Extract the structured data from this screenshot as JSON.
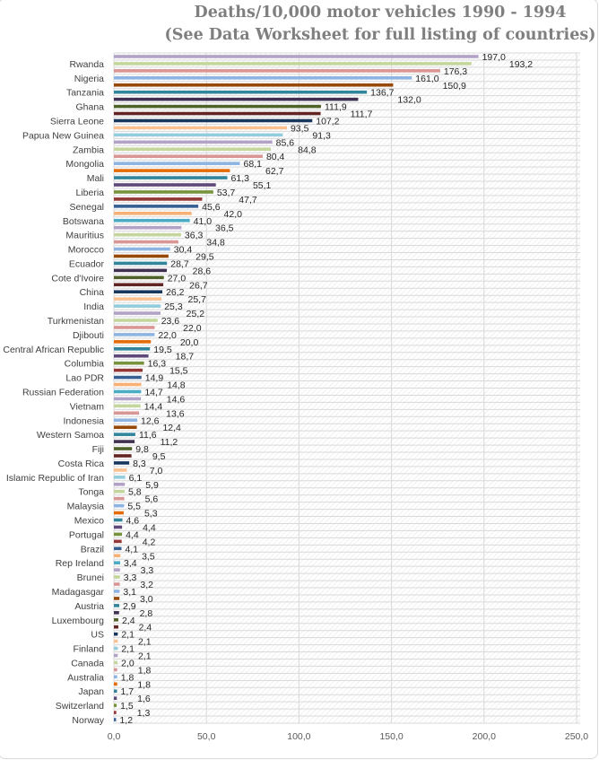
{
  "chart_data": {
    "type": "bar",
    "orientation": "horizontal",
    "title": [
      "Deaths/10,000 motor vehicles 1990 - 1994",
      "(See Data Worksheet for full listing of countries)"
    ],
    "xlabel": "",
    "ylabel": "",
    "xlim": [
      0,
      250
    ],
    "xticks": [
      "0,0",
      "50,0",
      "100,0",
      "150,0",
      "200,0",
      "250,0"
    ],
    "grid": true,
    "legend": "none",
    "categories": [
      "",
      "Rwanda",
      "",
      "Nigeria",
      "",
      "Tanzania",
      "",
      "Ghana",
      "",
      "Sierra Leone",
      "",
      "Papua New Guinea",
      "",
      "Zambia",
      "",
      "Mongolia",
      "",
      "Mali",
      "",
      "Liberia",
      "",
      "Senegal",
      "",
      "Botswana",
      "",
      "Mauritius",
      "",
      "Morocco",
      "",
      "Ecuador",
      "",
      "Cote d'Ivoire",
      "",
      "China",
      "",
      "India",
      "",
      "Turkmenistan",
      "",
      "Djibouti",
      "",
      "Central African Republic",
      "",
      "Columbia",
      "",
      "Lao PDR",
      "",
      "Russian Federation",
      "",
      "Vietnam",
      "",
      "Indonesia",
      "",
      "Western Samoa",
      "",
      "Fiji",
      "",
      "Costa Rica",
      "",
      "Islamic Republic of Iran",
      "",
      "Tonga",
      "",
      "Malaysia",
      "",
      "Mexico",
      "",
      "Portugal",
      "",
      "Brazil",
      "",
      "Rep Ireland",
      "",
      "Brunei",
      "",
      "Madagasgar",
      "",
      "Austria",
      "",
      "Luxembourg",
      "",
      "US",
      "",
      "Finland",
      "",
      "Canada",
      "",
      "Australia",
      "",
      "Japan",
      "",
      "Switzerland",
      "",
      "Norway"
    ],
    "values": [
      197.0,
      193.2,
      176.3,
      161.0,
      150.9,
      136.7,
      132.0,
      111.9,
      111.7,
      107.2,
      93.5,
      91.3,
      85.6,
      84.8,
      80.4,
      68.1,
      62.7,
      61.3,
      55.1,
      53.7,
      47.7,
      45.6,
      42.0,
      41.0,
      36.5,
      36.3,
      34.8,
      30.4,
      29.5,
      28.7,
      28.6,
      27.0,
      26.7,
      26.2,
      25.7,
      25.3,
      25.2,
      23.6,
      22.0,
      22.0,
      20.0,
      19.5,
      18.7,
      16.3,
      15.5,
      14.9,
      14.8,
      14.7,
      14.6,
      14.4,
      13.6,
      12.6,
      12.4,
      11.6,
      11.2,
      9.8,
      9.5,
      8.3,
      7.0,
      6.1,
      5.9,
      5.8,
      5.6,
      5.5,
      5.3,
      4.6,
      4.4,
      4.4,
      4.2,
      4.1,
      3.5,
      3.4,
      3.3,
      3.3,
      3.2,
      3.1,
      3.0,
      2.9,
      2.8,
      2.4,
      2.4,
      2.1,
      2.1,
      2.1,
      2.1,
      2.0,
      1.8,
      1.8,
      1.8,
      1.7,
      1.6,
      1.5,
      1.3,
      1.2
    ],
    "colors": [
      "#b3a2c7",
      "#c3d69b",
      "#d99694",
      "#8eb4e3",
      "#984807",
      "#31859c",
      "#403152",
      "#4f6228",
      "#632523",
      "#17375e",
      "#fac090",
      "#93cddd",
      "#b3a2c7",
      "#c3d69b",
      "#d99694",
      "#8eb4e3",
      "#e46c0a",
      "#31859c",
      "#5f497a",
      "#77933c",
      "#953735",
      "#366092",
      "#f9b074",
      "#4bacc6"
    ]
  }
}
